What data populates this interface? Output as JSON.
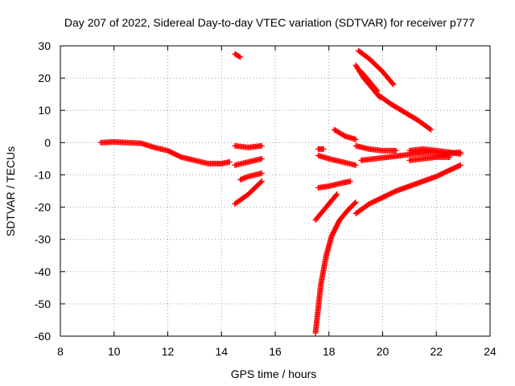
{
  "chart_data": {
    "type": "scatter",
    "title": "Day 207 of 2022, Sidereal Day-to-day VTEC variation (SDTVAR) for receiver p777",
    "xlabel": "GPS time / hours",
    "ylabel": "SDTVAR / TECUs",
    "xlim": [
      8,
      24
    ],
    "ylim": [
      -60,
      30
    ],
    "xticks": [
      8,
      10,
      12,
      14,
      16,
      18,
      20,
      22,
      24
    ],
    "yticks": [
      -60,
      -50,
      -40,
      -30,
      -20,
      -10,
      0,
      10,
      20,
      30
    ],
    "grid": true,
    "marker": "+",
    "series_color": "#ff0000",
    "segments": [
      {
        "x": [
          9.5,
          10.0,
          10.5,
          11.0,
          11.5,
          12.0,
          12.5,
          13.0,
          13.5,
          14.0,
          14.3
        ],
        "y": [
          0,
          0.2,
          0,
          -0.2,
          -1.5,
          -2.5,
          -4.5,
          -5.5,
          -6.5,
          -6.5,
          -6.0
        ]
      },
      {
        "x": [
          14.5,
          14.7
        ],
        "y": [
          27.5,
          26.5
        ]
      },
      {
        "x": [
          14.5,
          15.0,
          15.5
        ],
        "y": [
          -1.0,
          -1.5,
          -1.0
        ]
      },
      {
        "x": [
          14.5,
          15.0,
          15.5
        ],
        "y": [
          -7.0,
          -6.0,
          -5.0
        ]
      },
      {
        "x": [
          14.7,
          15.0,
          15.5
        ],
        "y": [
          -11.5,
          -10.5,
          -9.5
        ]
      },
      {
        "x": [
          14.5,
          15.0,
          15.5
        ],
        "y": [
          -19.0,
          -16.0,
          -12.0
        ]
      },
      {
        "x": [
          17.5,
          17.7,
          17.9,
          18.1,
          18.4,
          18.7,
          19.0
        ],
        "y": [
          -59.0,
          -44.0,
          -35.0,
          -29.0,
          -24.0,
          -21.0,
          -18.5
        ]
      },
      {
        "x": [
          17.5,
          17.8,
          18.0,
          18.3
        ],
        "y": [
          -24.0,
          -21.0,
          -19.0,
          -16.0
        ]
      },
      {
        "x": [
          17.6,
          18.0,
          18.5,
          18.8
        ],
        "y": [
          -14.0,
          -13.5,
          -12.5,
          -12.0
        ]
      },
      {
        "x": [
          17.6,
          17.8
        ],
        "y": [
          -2.0,
          -2.0
        ]
      },
      {
        "x": [
          17.6,
          18.0,
          18.5,
          19.0
        ],
        "y": [
          -4.0,
          -5.0,
          -6.0,
          -7.0
        ]
      },
      {
        "x": [
          18.2,
          18.6,
          19.0
        ],
        "y": [
          4.0,
          2.0,
          1.0
        ]
      },
      {
        "x": [
          19.0,
          19.5,
          20.0,
          20.5
        ],
        "y": [
          -1.0,
          -2.0,
          -2.5,
          -2.5
        ]
      },
      {
        "x": [
          19.0,
          19.5,
          20.0,
          20.5,
          21.0,
          21.5,
          22.0,
          22.5,
          22.9
        ],
        "y": [
          -22.0,
          -19.0,
          -17.0,
          -15.0,
          -13.5,
          -12.0,
          -10.5,
          -8.5,
          -7.0
        ]
      },
      {
        "x": [
          19.2,
          19.7,
          20.2,
          20.7,
          21.2,
          21.8,
          22.3,
          22.9
        ],
        "y": [
          -5.5,
          -5.0,
          -4.5,
          -4.0,
          -3.5,
          -3.0,
          -3.5,
          -3.0
        ]
      },
      {
        "x": [
          21.0,
          21.5,
          22.0,
          22.5,
          22.9
        ],
        "y": [
          -2.5,
          -2.0,
          -2.5,
          -3.0,
          -3.5
        ]
      },
      {
        "x": [
          21.0,
          21.5,
          22.0,
          22.5
        ],
        "y": [
          -5.5,
          -5.0,
          -4.5,
          -4.5
        ]
      },
      {
        "x": [
          19.1,
          19.5,
          20.0,
          20.4
        ],
        "y": [
          28.5,
          26.0,
          22.0,
          18.0
        ]
      },
      {
        "x": [
          19.0,
          19.3,
          19.6,
          19.9
        ],
        "y": [
          24.0,
          20.0,
          17.0,
          14.0
        ]
      },
      {
        "x": [
          19.2,
          19.5,
          19.8
        ],
        "y": [
          22.0,
          19.0,
          16.0
        ]
      },
      {
        "x": [
          19.8,
          20.3,
          20.8,
          21.3,
          21.8
        ],
        "y": [
          15.0,
          12.0,
          9.5,
          7.0,
          4.0
        ]
      }
    ]
  }
}
